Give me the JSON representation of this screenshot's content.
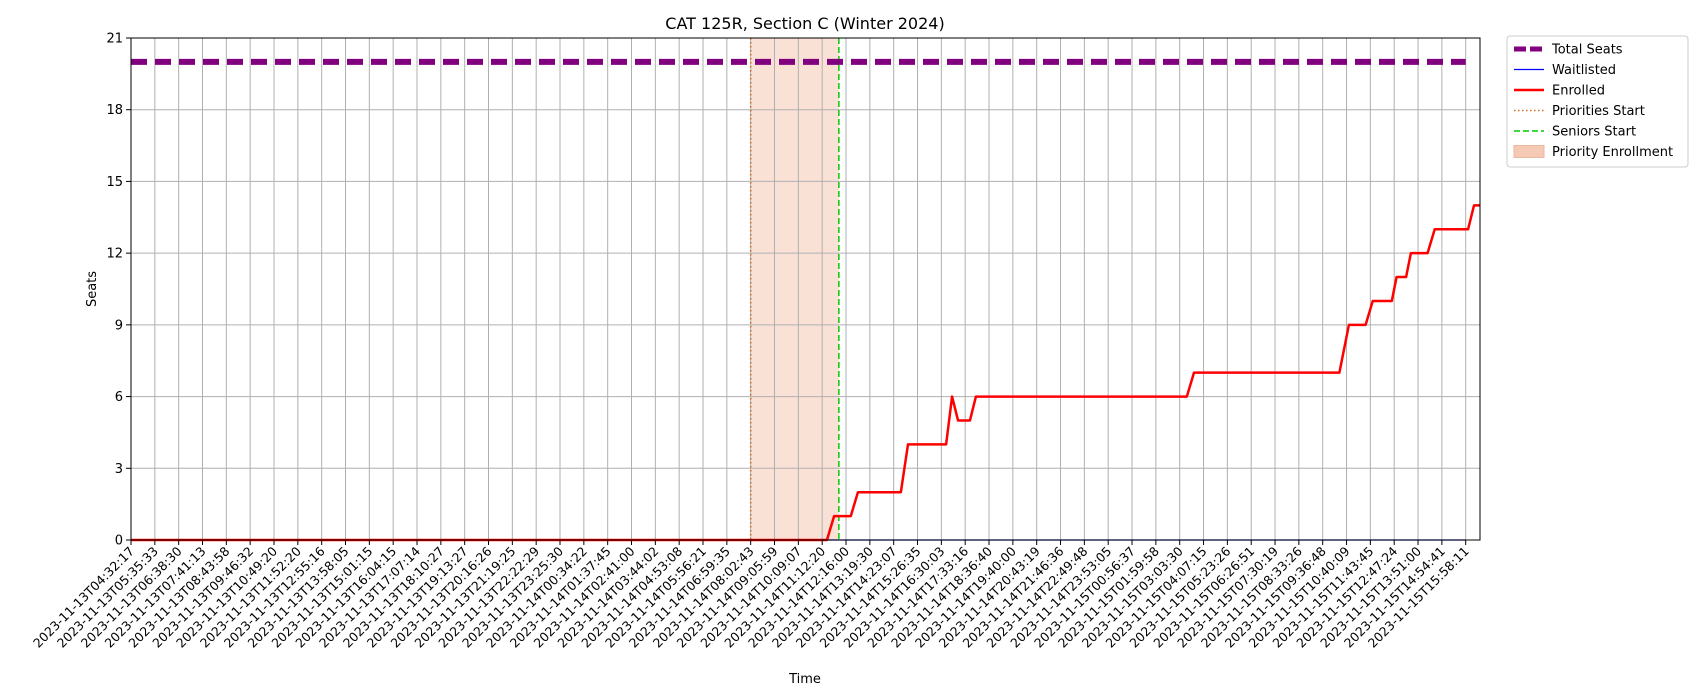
{
  "chart_data": {
    "type": "line",
    "title": "CAT 125R, Section C (Winter 2024)",
    "xlabel": "Time",
    "ylabel": "Seats",
    "ylim": [
      0,
      21
    ],
    "yticks": [
      0,
      3,
      6,
      9,
      12,
      15,
      18,
      21
    ],
    "grid": true,
    "legend_position": "outside-top-right",
    "x": [
      "2023-11-13T04:32:17",
      "2023-11-13T05:35:33",
      "2023-11-13T06:38:30",
      "2023-11-13T07:41:13",
      "2023-11-13T08:43:58",
      "2023-11-13T09:46:32",
      "2023-11-13T10:49:20",
      "2023-11-13T11:52:20",
      "2023-11-13T12:55:16",
      "2023-11-13T13:58:05",
      "2023-11-13T15:01:15",
      "2023-11-13T16:04:15",
      "2023-11-13T17:07:14",
      "2023-11-13T18:10:27",
      "2023-11-13T19:13:27",
      "2023-11-13T20:16:26",
      "2023-11-13T21:19:25",
      "2023-11-13T22:22:29",
      "2023-11-13T23:25:30",
      "2023-11-14T00:34:22",
      "2023-11-14T01:37:45",
      "2023-11-14T02:41:00",
      "2023-11-14T03:44:02",
      "2023-11-14T04:53:08",
      "2023-11-14T05:56:21",
      "2023-11-14T06:59:35",
      "2023-11-14T08:02:43",
      "2023-11-14T09:05:59",
      "2023-11-14T10:09:07",
      "2023-11-14T11:12:20",
      "2023-11-14T12:16:00",
      "2023-11-14T13:19:30",
      "2023-11-14T14:23:07",
      "2023-11-14T15:26:35",
      "2023-11-14T16:30:03",
      "2023-11-14T17:33:16",
      "2023-11-14T18:36:40",
      "2023-11-14T19:40:00",
      "2023-11-14T20:43:19",
      "2023-11-14T21:46:36",
      "2023-11-14T22:49:48",
      "2023-11-14T23:53:05",
      "2023-11-15T00:56:37",
      "2023-11-15T01:59:58",
      "2023-11-15T03:03:30",
      "2023-11-15T04:07:15",
      "2023-11-15T05:23:26",
      "2023-11-15T06:26:51",
      "2023-11-15T07:30:19",
      "2023-11-15T08:33:26",
      "2023-11-15T09:36:48",
      "2023-11-15T10:40:09",
      "2023-11-15T11:43:45",
      "2023-11-15T12:47:24",
      "2023-11-15T13:51:00",
      "2023-11-15T14:54:41",
      "2023-11-15T15:58:11"
    ],
    "series": [
      {
        "name": "Total Seats",
        "color": "#800080",
        "style": "dashed-thick",
        "values": [
          [
            0,
            20
          ],
          [
            56,
            20
          ]
        ]
      },
      {
        "name": "Waitlisted",
        "color": "#0000ff",
        "style": "solid-thin",
        "values": [
          [
            0,
            0
          ],
          [
            56,
            0
          ]
        ]
      },
      {
        "name": "Enrolled",
        "color": "#ff0000",
        "style": "solid",
        "values": [
          [
            0,
            0
          ],
          [
            29.2,
            0
          ],
          [
            29.5,
            1
          ],
          [
            30.2,
            1
          ],
          [
            30.5,
            2
          ],
          [
            32.3,
            2
          ],
          [
            32.6,
            4
          ],
          [
            34.2,
            4
          ],
          [
            34.45,
            6
          ],
          [
            34.7,
            5
          ],
          [
            35.2,
            5
          ],
          [
            35.45,
            6
          ],
          [
            44.3,
            6
          ],
          [
            44.6,
            7
          ],
          [
            50.7,
            7
          ],
          [
            51.1,
            9
          ],
          [
            51.8,
            9
          ],
          [
            52.1,
            10
          ],
          [
            52.9,
            10
          ],
          [
            53.1,
            11
          ],
          [
            53.5,
            11
          ],
          [
            53.7,
            12
          ],
          [
            54.4,
            12
          ],
          [
            54.7,
            13
          ],
          [
            56.1,
            13
          ],
          [
            56.35,
            14
          ],
          [
            56.6,
            14
          ]
        ]
      }
    ],
    "markers": [
      {
        "name": "Priorities Start",
        "x_index": 26,
        "color": "#d2691e",
        "style": "dotted"
      },
      {
        "name": "Seniors Start",
        "x_index": 29.7,
        "color": "#00cc00",
        "style": "dashed"
      }
    ],
    "spans": [
      {
        "name": "Priority Enrollment",
        "from_index": 26,
        "to_index": 29.7,
        "color": "#f5c9b3"
      }
    ],
    "legend": [
      {
        "label": "Total Seats",
        "color": "#800080",
        "kind": "dashed-thick"
      },
      {
        "label": "Waitlisted",
        "color": "#0000ff",
        "kind": "solid-thin"
      },
      {
        "label": "Enrolled",
        "color": "#ff0000",
        "kind": "solid"
      },
      {
        "label": "Priorities Start",
        "color": "#d2691e",
        "kind": "dotted"
      },
      {
        "label": "Seniors Start",
        "color": "#00cc00",
        "kind": "dashed"
      },
      {
        "label": "Priority Enrollment",
        "color": "#f5c9b3",
        "kind": "patch"
      }
    ]
  }
}
